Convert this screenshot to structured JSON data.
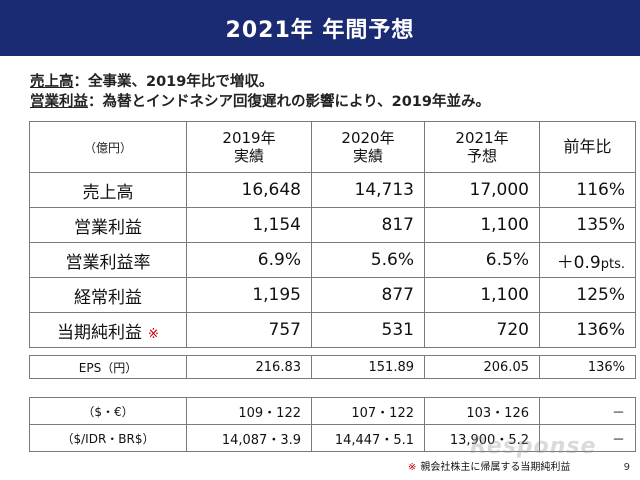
{
  "header": {
    "title": "2021年 年間予想"
  },
  "notes": [
    {
      "key": "売上高",
      "text": "：全事業、2019年比で増収。"
    },
    {
      "key": "営業利益",
      "text": "：為替とインドネシア回復遅れの影響により、2019年並み。"
    }
  ],
  "table": {
    "unit": "（億円）",
    "columns": [
      {
        "line1": "2019年",
        "line2": "実績"
      },
      {
        "line1": "2020年",
        "line2": "実績"
      },
      {
        "line1": "2021年",
        "line2": "予想"
      },
      {
        "line1": "前年比",
        "line2": ""
      }
    ],
    "rows": [
      {
        "label": "売上高",
        "mark": "",
        "v2019": "16,648",
        "v2020": "14,713",
        "v2021": "17,000",
        "yoy": "116%",
        "yoy_unit": ""
      },
      {
        "label": "営業利益",
        "mark": "",
        "v2019": "1,154",
        "v2020": "817",
        "v2021": "1,100",
        "yoy": "135%",
        "yoy_unit": ""
      },
      {
        "label": "営業利益率",
        "mark": "",
        "v2019": "6.9%",
        "v2020": "5.6%",
        "v2021": "6.5%",
        "yoy": "＋0.9",
        "yoy_unit": "pts."
      },
      {
        "label": "経常利益",
        "mark": "",
        "v2019": "1,195",
        "v2020": "877",
        "v2021": "1,100",
        "yoy": "125%",
        "yoy_unit": ""
      },
      {
        "label": "当期純利益",
        "mark": "※",
        "v2019": "757",
        "v2020": "531",
        "v2021": "720",
        "yoy": "136%",
        "yoy_unit": ""
      }
    ]
  },
  "eps": {
    "label": "EPS（円）",
    "v2019": "216.83",
    "v2020": "151.89",
    "v2021": "206.05",
    "yoy": "136%"
  },
  "fx": [
    {
      "label": "（$・€）",
      "v2019": "109・122",
      "v2020": "107・122",
      "v2021": "103・126",
      "yoy": "－"
    },
    {
      "label": "（$/IDR・BR$）",
      "v2019": "14,087・3.9",
      "v2020": "14,447・5.1",
      "v2021": "13,900・5.2",
      "yoy": "－"
    }
  ],
  "footnote": {
    "mark": "※",
    "text": "親会社株主に帰属する当期純利益"
  },
  "page_number": "9",
  "watermark": "Response",
  "colors": {
    "header_bg": "#1a2a73",
    "header_text": "#ffffff",
    "accent_red": "#cc0000",
    "border": "#7a7a7a"
  }
}
